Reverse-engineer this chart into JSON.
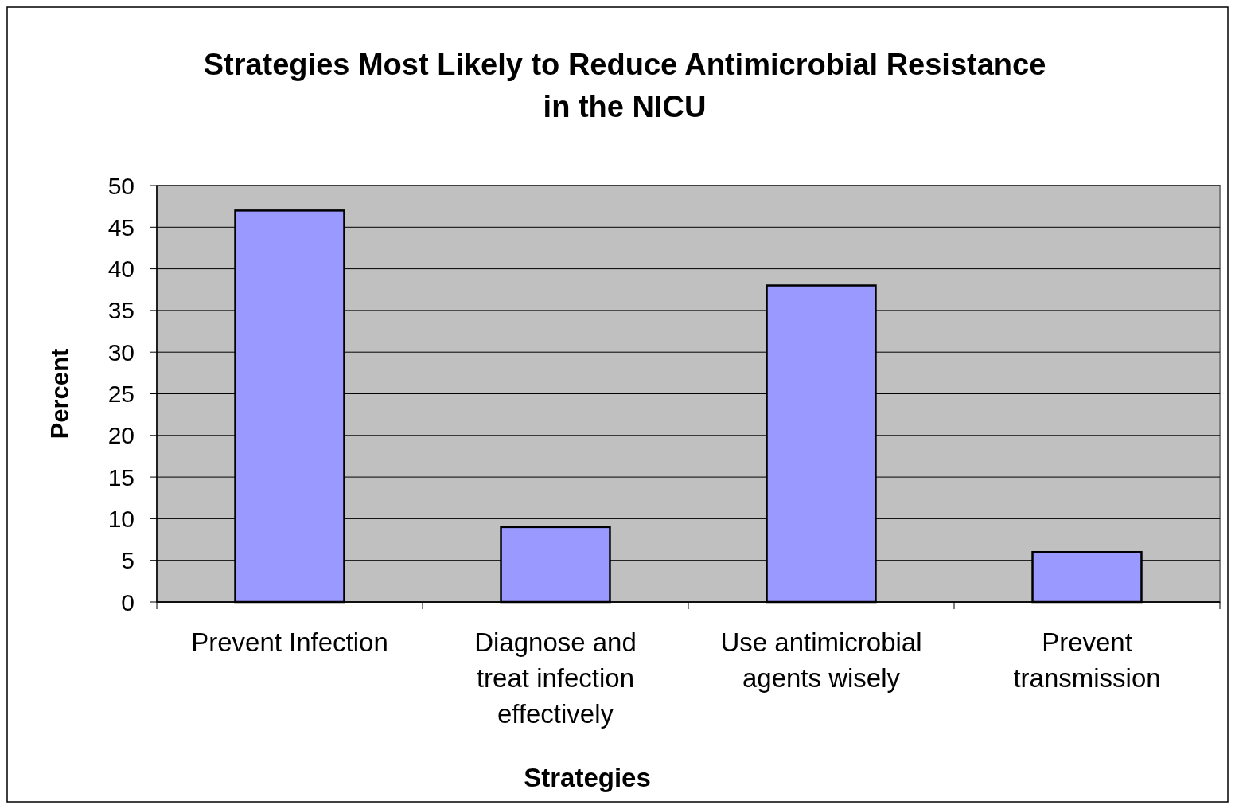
{
  "chart_data": {
    "type": "bar",
    "title": "Strategies Most Likely to Reduce Antimicrobial Resistance in the NICU",
    "xlabel": "Strategies",
    "ylabel": "Percent",
    "categories": [
      "Prevent Infection",
      "Diagnose and treat infection effectively",
      "Use antimicrobial agents wisely",
      "Prevent transmission"
    ],
    "values": [
      47,
      9,
      38,
      6
    ],
    "color": "#9999ff",
    "ylim": [
      0,
      50
    ],
    "yticks": [
      0,
      5,
      10,
      15,
      20,
      25,
      30,
      35,
      40,
      45,
      50
    ],
    "grid": "y"
  }
}
